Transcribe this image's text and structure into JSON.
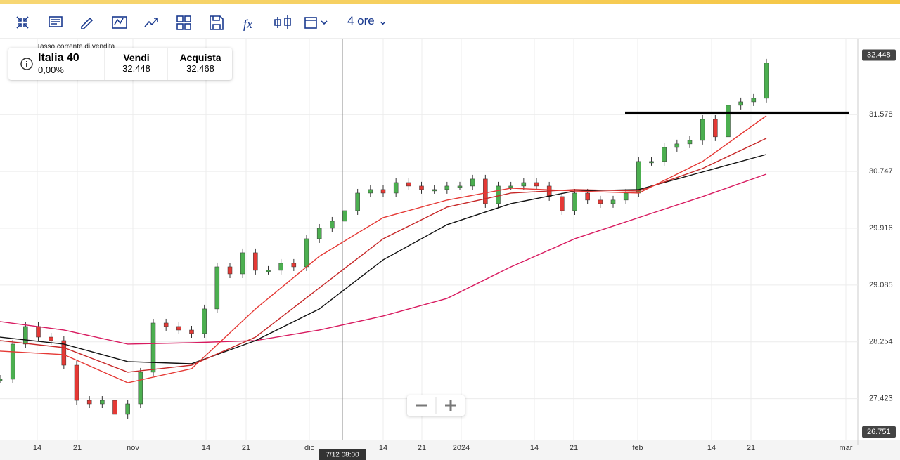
{
  "toolbar": {
    "interval": "4 ore"
  },
  "info": {
    "caption": "Tasso corrente di vendita",
    "instrument": "Italia 40",
    "change": "0,00%",
    "sell_label": "Vendi",
    "sell": "32.448",
    "buy_label": "Acquista",
    "buy": "32.468"
  },
  "chart_data": {
    "type": "candlestick",
    "x_labels": [
      "14",
      "21",
      "nov",
      "14",
      "21",
      "dic",
      "14",
      "21",
      "2024",
      "14",
      "21",
      "feb",
      "14",
      "21",
      "mar"
    ],
    "crosshair_label": "7/12 08:00",
    "ylim": [
      26.751,
      32.69
    ],
    "yticks": [
      27.423,
      28.254,
      29.085,
      29.916,
      30.747,
      31.578
    ],
    "current_price": 32.448,
    "drawn_level": 31.602,
    "grid": true,
    "price": {
      "up_color": "#4caf50",
      "down_color": "#e53935",
      "values": [
        27.707,
        28.221,
        28.478,
        28.323,
        28.272,
        27.912,
        27.398,
        27.347,
        27.398,
        27.193,
        27.347,
        27.81,
        28.529,
        28.478,
        28.426,
        28.375,
        28.735,
        29.351,
        29.248,
        29.557,
        29.3,
        29.3,
        29.403,
        29.351,
        29.762,
        29.916,
        30.019,
        30.173,
        30.43,
        30.482,
        30.43,
        30.584,
        30.533,
        30.482,
        30.482,
        30.533,
        30.533,
        30.636,
        30.276,
        30.533,
        30.533,
        30.584,
        30.533,
        30.379,
        30.173,
        30.43,
        30.328,
        30.276,
        30.328,
        30.43,
        30.893,
        30.893,
        31.098,
        31.15,
        31.201,
        31.509,
        31.253,
        31.715,
        31.766,
        31.818,
        32.332
      ]
    },
    "series": [
      {
        "color": "#d81b60",
        "values": [
          28.55,
          28.426,
          28.221,
          28.241,
          28.272,
          28.426,
          28.632,
          28.889,
          29.351,
          29.762,
          30.071,
          30.379,
          30.708
        ]
      },
      {
        "color": "#111111",
        "values": [
          28.323,
          28.221,
          27.964,
          27.933,
          28.272,
          28.735,
          29.454,
          29.968,
          30.276,
          30.461,
          30.482,
          30.739,
          30.996
        ]
      },
      {
        "color": "#c62828",
        "values": [
          28.272,
          28.169,
          27.81,
          27.912,
          28.323,
          29.043,
          29.762,
          30.225,
          30.43,
          30.482,
          30.461,
          30.79,
          31.232
        ]
      },
      {
        "color": "#e53935",
        "values": [
          28.118,
          28.067,
          27.655,
          27.861,
          28.735,
          29.505,
          30.071,
          30.328,
          30.502,
          30.461,
          30.43,
          30.893,
          31.561
        ]
      }
    ]
  }
}
